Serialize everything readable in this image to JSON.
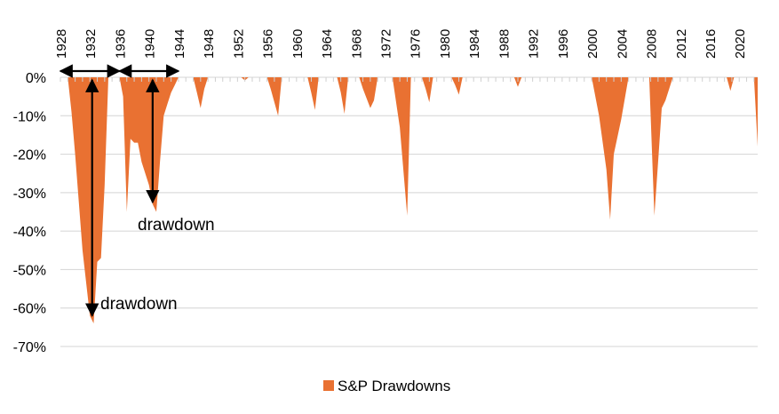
{
  "chart_data": {
    "type": "area",
    "title": "",
    "xlabel": "",
    "ylabel": "",
    "x_ticks": [
      "1928",
      "1932",
      "1936",
      "1940",
      "1944",
      "1948",
      "1952",
      "1956",
      "1960",
      "1964",
      "1968",
      "1972",
      "1976",
      "1980",
      "1984",
      "1988",
      "1992",
      "1996",
      "2000",
      "2004",
      "2008",
      "2012",
      "2016",
      "2020"
    ],
    "y_ticks": [
      "0%",
      "-10%",
      "-20%",
      "-30%",
      "-40%",
      "-50%",
      "-60%",
      "-70%"
    ],
    "y_tick_values": [
      0,
      -10,
      -20,
      -30,
      -40,
      -50,
      -60,
      -70
    ],
    "xlim": [
      1928,
      2022.5
    ],
    "ylim": [
      -70,
      0
    ],
    "grid": true,
    "legend_position": "bottom",
    "series": [
      {
        "name": "S&P Drawdowns",
        "color": "#E97132",
        "x": [
          1929,
          1929.5,
          1930,
          1931,
          1932,
          1932.5,
          1933,
          1933.5,
          1934,
          1934.5,
          1935,
          1936,
          1936.5,
          1937,
          1937.5,
          1938,
          1938.5,
          1939,
          1940,
          1940.5,
          1941,
          1941.5,
          1942,
          1942.5,
          1943,
          1943.5,
          1944,
          1946,
          1946.5,
          1947,
          1947.5,
          1948,
          1952.5,
          1953,
          1953.5,
          1956,
          1956.5,
          1957.5,
          1958,
          1961.5,
          1962,
          1962.5,
          1963,
          1965.5,
          1966,
          1966.5,
          1967,
          1968.5,
          1969,
          1970,
          1970.5,
          1971,
          1973,
          1974,
          1975,
          1975.5,
          1977,
          1977.5,
          1978,
          1978.5,
          1981,
          1981.5,
          1982,
          1982.5,
          1989.5,
          1990,
          1990.5,
          2000,
          2001,
          2002,
          2002.5,
          2003,
          2004,
          2005,
          2007.8,
          2008.5,
          2009,
          2009.5,
          2010,
          2011,
          2011.5,
          2012,
          2018.3,
          2018.8,
          2019.3,
          2022,
          2022.5
        ],
        "y": [
          0,
          -9,
          -20,
          -45,
          -62,
          -64,
          -48,
          -47,
          -28,
          0,
          0,
          0,
          -5,
          -35,
          -16,
          -17,
          -17,
          -22,
          -28,
          -33,
          -35,
          -22,
          -10,
          -7,
          -4,
          -2,
          0,
          0,
          -4,
          -8,
          -3,
          0,
          0,
          -0.8,
          0,
          0,
          -3,
          -10,
          0,
          0,
          -4,
          -8.5,
          0,
          0,
          -4,
          -9.5,
          0,
          0,
          -3,
          -8,
          -6,
          0,
          0,
          -13,
          -36,
          0,
          0,
          -3,
          -6.5,
          0,
          0,
          -2,
          -4.5,
          0,
          0,
          -2.5,
          0,
          0,
          -10,
          -24,
          -37,
          -20,
          -11,
          0,
          0,
          -36,
          -22,
          -8,
          -6,
          0,
          0,
          0,
          0,
          -3.5,
          0,
          0,
          -18
        ]
      }
    ],
    "annotations": [
      {
        "text": "drawdown"
      },
      {
        "text": "drawdown"
      }
    ]
  }
}
